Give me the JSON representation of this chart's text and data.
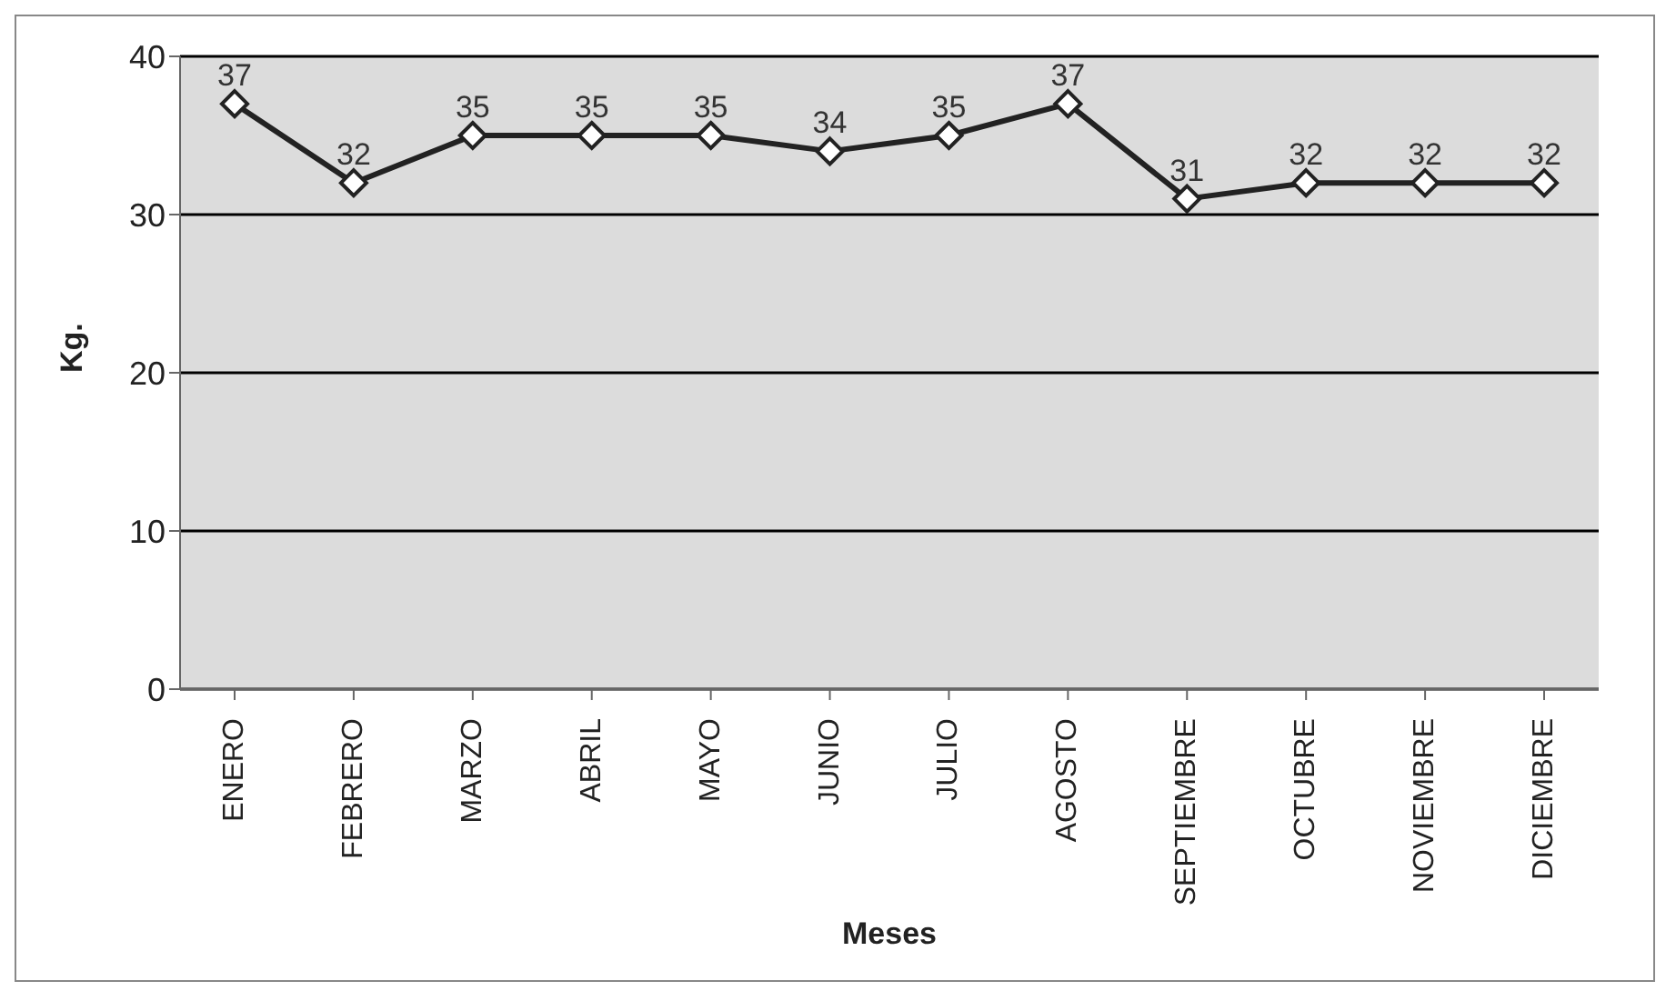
{
  "chart_data": {
    "type": "line",
    "xlabel": "Meses",
    "ylabel": "Kg.",
    "categories": [
      "ENERO",
      "FEBRERO",
      "MARZO",
      "ABRIL",
      "MAYO",
      "JUNIO",
      "JULIO",
      "AGOSTO",
      "SEPTIEMBRE",
      "OCTUBRE",
      "NOVIEMBRE",
      "DICIEMBRE"
    ],
    "series": [
      {
        "color": "#222222",
        "values": [
          37,
          32,
          35,
          35,
          35,
          34,
          35,
          37,
          31,
          32,
          32,
          32
        ]
      }
    ],
    "ylim": [
      0,
      40
    ],
    "yticks": [
      0,
      10,
      20,
      30,
      40
    ],
    "grid": "y",
    "marker": "diamond",
    "line_style": "solid",
    "data_labels": true
  }
}
